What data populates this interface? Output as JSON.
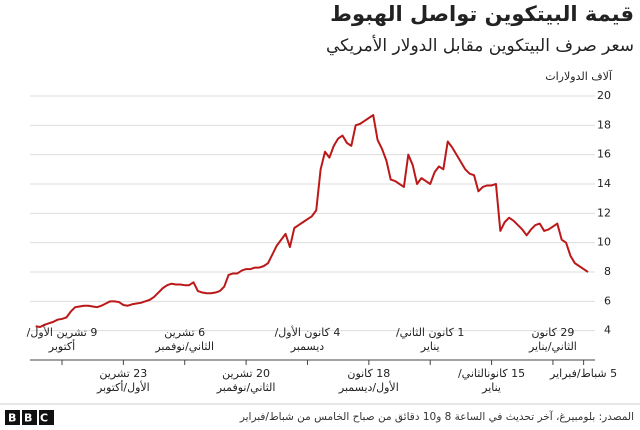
{
  "chart_data": {
    "type": "line",
    "title": "قيمة البيتكوين تواصل الهبوط",
    "subtitle": "سعر صرف البيتكوين مقابل الدولار الأمريكي",
    "y_label": "آلاف الدولارات",
    "source": "المصدر: بلومبيرغ، آخر تحديث في الساعة 8 و10 دقائق من صباح الخامس من شباط/فبراير",
    "logo": "BBC",
    "color": "#bb1919",
    "grid": true,
    "ylim": [
      2,
      20
    ],
    "yticks": [
      4,
      6,
      8,
      10,
      12,
      14,
      16,
      18,
      20
    ],
    "categories": [
      null,
      null,
      null,
      null,
      null,
      null,
      "9 تشرين الأول/أكتوبر",
      null,
      null,
      null,
      null,
      null,
      null,
      null,
      null,
      null,
      null,
      null,
      null,
      null,
      "23 تشرين الأول/أكتوبر",
      null,
      null,
      null,
      null,
      null,
      null,
      null,
      null,
      null,
      null,
      null,
      null,
      null,
      "6 تشرين الثاني/نوفمبر",
      null,
      null,
      null,
      null,
      null,
      null,
      null,
      null,
      null,
      null,
      null,
      null,
      null,
      "20 تشرين الثاني/نوفمبر",
      null,
      null,
      null,
      null,
      null,
      null,
      null,
      null,
      null,
      null,
      null,
      null,
      null,
      "4 كانون الأول/ديسمبر",
      null,
      null,
      null,
      null,
      null,
      null,
      null,
      null,
      null,
      null,
      null,
      null,
      null,
      "18 كانون الأول/ديسمبر",
      null,
      null,
      null,
      null,
      null,
      null,
      null,
      null,
      null,
      null,
      null,
      null,
      null,
      "1 كانون الثاني/يناير",
      null,
      null,
      null,
      null,
      null,
      null,
      null,
      null,
      null,
      null,
      null,
      null,
      null,
      "15 كانونالثاني/يناير",
      null,
      null,
      null,
      null,
      null,
      null,
      null,
      null,
      null,
      null,
      null,
      null,
      null,
      "29 كانون الثاني/يناير",
      null,
      null,
      null,
      null,
      null,
      null,
      "5 شباط/فبراير",
      null
    ],
    "values": [
      4.3,
      4.25,
      4.4,
      4.5,
      4.6,
      4.75,
      4.8,
      4.9,
      5.3,
      5.6,
      5.65,
      5.7,
      5.7,
      5.65,
      5.6,
      5.7,
      5.85,
      6.0,
      6.0,
      5.95,
      5.75,
      5.7,
      5.8,
      5.85,
      5.9,
      6.0,
      6.1,
      6.3,
      6.6,
      6.9,
      7.1,
      7.2,
      7.15,
      7.15,
      7.1,
      7.1,
      7.3,
      6.7,
      6.6,
      6.55,
      6.55,
      6.6,
      6.7,
      7.0,
      7.8,
      7.9,
      7.9,
      8.1,
      8.2,
      8.2,
      8.3,
      8.3,
      8.4,
      8.6,
      9.2,
      9.8,
      10.2,
      10.6,
      9.7,
      11.0,
      11.2,
      11.4,
      11.6,
      11.8,
      12.2,
      15.0,
      16.2,
      15.8,
      16.6,
      17.1,
      17.3,
      16.8,
      16.6,
      18.0,
      18.1,
      18.3,
      18.5,
      18.7,
      17.0,
      16.4,
      15.6,
      14.3,
      14.2,
      14.0,
      13.8,
      16.0,
      15.3,
      14.0,
      14.4,
      14.2,
      14.0,
      14.8,
      15.2,
      15.0,
      16.9,
      16.5,
      16.0,
      15.5,
      15.0,
      14.7,
      14.6,
      13.5,
      13.8,
      13.9,
      13.9,
      14.0,
      10.8,
      11.4,
      11.7,
      11.5,
      11.2,
      10.9,
      10.5,
      10.9,
      11.2,
      11.3,
      10.8,
      10.9,
      11.1,
      11.3,
      10.2,
      10.0,
      9.1,
      8.6,
      8.4,
      8.2,
      8.0
    ]
  }
}
